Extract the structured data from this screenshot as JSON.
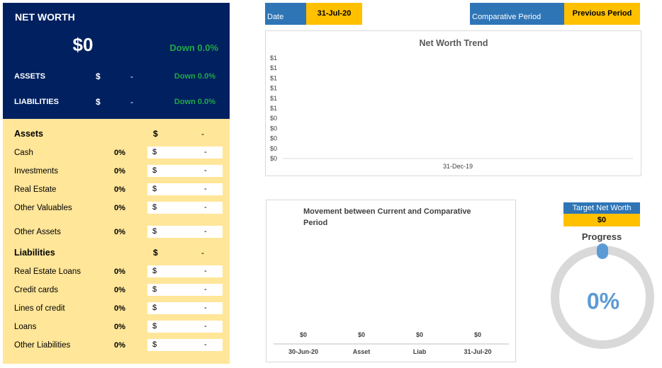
{
  "summary": {
    "title": "NET WORTH",
    "value": "$0",
    "change": "Down 0.0%",
    "rows": [
      {
        "label": "ASSETS",
        "dollar": "$",
        "dash": "-",
        "change": "Down 0.0%"
      },
      {
        "label": "LIABILITIES",
        "dollar": "$",
        "dash": "-",
        "change": "Down 0.0%"
      }
    ]
  },
  "assets": {
    "heading": "Assets",
    "dollar": "$",
    "dash": "-",
    "items": [
      {
        "label": "Cash",
        "pct": "0%",
        "dollar": "$",
        "value": "-"
      },
      {
        "label": "Investments",
        "pct": "0%",
        "dollar": "$",
        "value": "-"
      },
      {
        "label": "Real Estate",
        "pct": "0%",
        "dollar": "$",
        "value": "-"
      },
      {
        "label": "Other Valuables",
        "pct": "0%",
        "dollar": "$",
        "value": "-"
      },
      {
        "label": "Other Assets",
        "pct": "0%",
        "dollar": "$",
        "value": "-"
      }
    ]
  },
  "liabilities": {
    "heading": "Liabilities",
    "dollar": "$",
    "dash": "-",
    "items": [
      {
        "label": "Real Estate Loans",
        "pct": "0%",
        "dollar": "$",
        "value": "-"
      },
      {
        "label": "Credit cards",
        "pct": "0%",
        "dollar": "$",
        "value": "-"
      },
      {
        "label": "Lines of credit",
        "pct": "0%",
        "dollar": "$",
        "value": "-"
      },
      {
        "label": "Loans",
        "pct": "0%",
        "dollar": "$",
        "value": "-"
      },
      {
        "label": "Other Liabilities",
        "pct": "0%",
        "dollar": "$",
        "value": "-"
      }
    ]
  },
  "topbar": {
    "date_label": "Date",
    "date_value": "31-Jul-20",
    "period_label": "Comparative Period",
    "period_value": "Previous Period"
  },
  "target": {
    "label": "Target Net Worth",
    "value": "$0",
    "progress_title": "Progress",
    "progress_text": "0%",
    "progress_fraction": 0
  },
  "colors": {
    "navy": "#002060",
    "green": "#21a846",
    "blue": "#2e75b6",
    "gold": "#ffc000",
    "cream": "#ffe699",
    "ring": "#d9d9d9",
    "progress": "#5b9bd5"
  },
  "chart_data": [
    {
      "type": "line",
      "title": "Net Worth Trend",
      "x": [
        "31-Dec-19"
      ],
      "y_tick_labels": [
        "$1",
        "$1",
        "$1",
        "$1",
        "$1",
        "$1",
        "$0",
        "$0",
        "$0",
        "$0",
        "$0"
      ],
      "series": [
        {
          "values": [
            0
          ]
        }
      ]
    },
    {
      "type": "bar",
      "title": "Movement between Current and Comparative Period",
      "categories": [
        "30-Jun-20",
        "Asset",
        "Liab",
        "31-Jul-20"
      ],
      "values": [
        0,
        0,
        0,
        0
      ],
      "data_labels": [
        "$0",
        "$0",
        "$0",
        "$0"
      ]
    }
  ]
}
